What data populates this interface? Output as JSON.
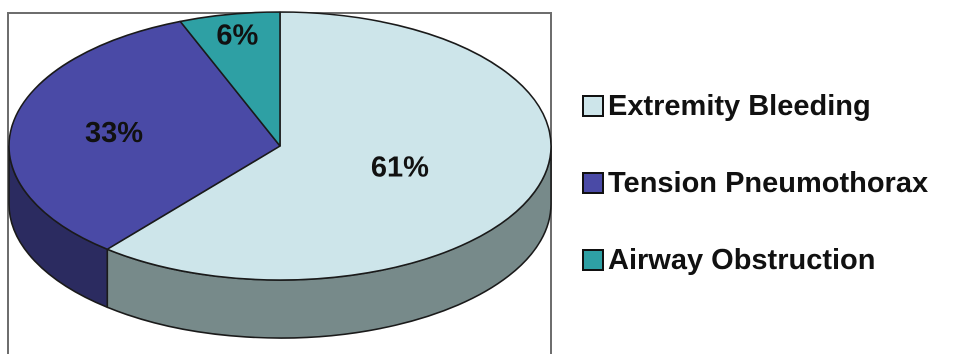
{
  "chart_data": {
    "type": "pie",
    "title": "",
    "style": "3d",
    "slices": [
      {
        "label": "Extremity Bleeding",
        "value": 61,
        "value_label": "61%",
        "color": "#CDE5EA",
        "side_color": "#778A8A"
      },
      {
        "label": "Tension Pneumothorax",
        "value": 33,
        "value_label": "33%",
        "color": "#4A4AA6",
        "side_color": "#2B2B60"
      },
      {
        "label": "Airway Obstruction",
        "value": 6,
        "value_label": "6%",
        "color": "#2EA0A4",
        "side_color": "#1D6668"
      }
    ],
    "legend_position": "right",
    "outline_color": "#1A1A1A"
  }
}
